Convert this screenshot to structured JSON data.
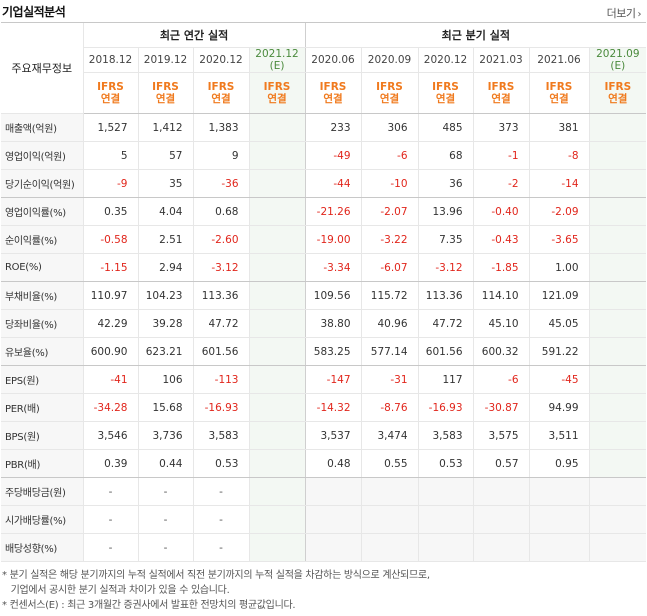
{
  "title": "기업실적분석",
  "more_label": "더보기",
  "header": {
    "label": "주요재무정보",
    "annual_group": "최근 연간 실적",
    "quarter_group": "최근 분기 실적",
    "periods": [
      {
        "label": "2018.12",
        "est": ""
      },
      {
        "label": "2019.12",
        "est": ""
      },
      {
        "label": "2020.12",
        "est": ""
      },
      {
        "label": "2021.12",
        "est": "(E)"
      },
      {
        "label": "2020.06",
        "est": ""
      },
      {
        "label": "2020.09",
        "est": ""
      },
      {
        "label": "2020.12",
        "est": ""
      },
      {
        "label": "2021.03",
        "est": ""
      },
      {
        "label": "2021.06",
        "est": ""
      },
      {
        "label": "2021.09",
        "est": "(E)"
      }
    ],
    "ifrs_top": "IFRS",
    "ifrs_bottom": "연결"
  },
  "rows": [
    {
      "label": "매출액(억원)",
      "values": [
        "1,527",
        "1,412",
        "1,383",
        "",
        "233",
        "306",
        "485",
        "373",
        "381",
        ""
      ]
    },
    {
      "label": "영업이익(억원)",
      "values": [
        "5",
        "57",
        "9",
        "",
        "-49",
        "-6",
        "68",
        "-1",
        "-8",
        ""
      ]
    },
    {
      "label": "당기순이익(억원)",
      "values": [
        "-9",
        "35",
        "-36",
        "",
        "-44",
        "-10",
        "36",
        "-2",
        "-14",
        ""
      ]
    },
    {
      "label": "영업이익률(%)",
      "values": [
        "0.35",
        "4.04",
        "0.68",
        "",
        "-21.26",
        "-2.07",
        "13.96",
        "-0.40",
        "-2.09",
        ""
      ]
    },
    {
      "label": "순이익률(%)",
      "values": [
        "-0.58",
        "2.51",
        "-2.60",
        "",
        "-19.00",
        "-3.22",
        "7.35",
        "-0.43",
        "-3.65",
        ""
      ]
    },
    {
      "label": "ROE(%)",
      "values": [
        "-1.15",
        "2.94",
        "-3.12",
        "",
        "-3.34",
        "-6.07",
        "-3.12",
        "-1.85",
        "1.00",
        ""
      ]
    },
    {
      "label": "부채비율(%)",
      "values": [
        "110.97",
        "104.23",
        "113.36",
        "",
        "109.56",
        "115.72",
        "113.36",
        "114.10",
        "121.09",
        ""
      ]
    },
    {
      "label": "당좌비율(%)",
      "values": [
        "42.29",
        "39.28",
        "47.72",
        "",
        "38.80",
        "40.96",
        "47.72",
        "45.10",
        "45.05",
        ""
      ]
    },
    {
      "label": "유보율(%)",
      "values": [
        "600.90",
        "623.21",
        "601.56",
        "",
        "583.25",
        "577.14",
        "601.56",
        "600.32",
        "591.22",
        ""
      ]
    },
    {
      "label": "EPS(원)",
      "values": [
        "-41",
        "106",
        "-113",
        "",
        "-147",
        "-31",
        "117",
        "-6",
        "-45",
        ""
      ]
    },
    {
      "label": "PER(배)",
      "values": [
        "-34.28",
        "15.68",
        "-16.93",
        "",
        "-14.32",
        "-8.76",
        "-16.93",
        "-30.87",
        "94.99",
        ""
      ]
    },
    {
      "label": "BPS(원)",
      "values": [
        "3,546",
        "3,736",
        "3,583",
        "",
        "3,537",
        "3,474",
        "3,583",
        "3,575",
        "3,511",
        ""
      ]
    },
    {
      "label": "PBR(배)",
      "values": [
        "0.39",
        "0.44",
        "0.53",
        "",
        "0.48",
        "0.55",
        "0.53",
        "0.57",
        "0.95",
        ""
      ]
    },
    {
      "label": "주당배당금(원)",
      "values": [
        "-",
        "-",
        "-",
        "",
        "",
        "",
        "",
        "",
        "",
        ""
      ]
    },
    {
      "label": "시가배당률(%)",
      "values": [
        "-",
        "-",
        "-",
        "",
        "",
        "",
        "",
        "",
        "",
        ""
      ]
    },
    {
      "label": "배당성향(%)",
      "values": [
        "-",
        "-",
        "-",
        "",
        "",
        "",
        "",
        "",
        "",
        ""
      ]
    }
  ],
  "notes": [
    "* 분기 실적은 해당 분기까지의 누적 실적에서 직전 분기까지의 누적 실적을 차감하는 방식으로 계산되므로,",
    "   기업에서 공시한 분기 실적과 차이가 있을 수 있습니다.",
    "* 컨센서스(E) : 최근 3개월간 증권사에서 발표한 전망치의 평균값입니다."
  ],
  "colors": {
    "negative": "#e1261c",
    "ifrs": "#f07a1e",
    "estimate": "#4a8a3c"
  }
}
